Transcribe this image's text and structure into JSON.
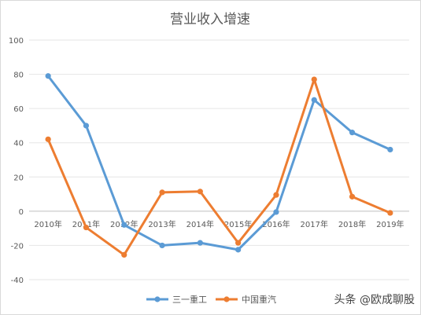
{
  "chart_data": {
    "type": "line",
    "title": "营业收入增速",
    "categories": [
      "2010年",
      "2011年",
      "2012年",
      "2013年",
      "2014年",
      "2015年",
      "2016年",
      "2017年",
      "2018年",
      "2019年"
    ],
    "ylim": [
      -40,
      100
    ],
    "yticks": [
      -40,
      -20,
      0,
      20,
      40,
      60,
      80,
      100
    ],
    "series": [
      {
        "name": "三一重工",
        "color": "#5b9bd5",
        "values": [
          79,
          50,
          -8,
          -20,
          -18.5,
          -22.5,
          -0.5,
          65,
          46,
          36
        ]
      },
      {
        "name": "中国重汽",
        "color": "#ed7d31",
        "values": [
          42,
          -9.5,
          -25.5,
          11,
          11.5,
          -18.5,
          9.5,
          77,
          8.5,
          -1
        ]
      }
    ],
    "grid": true,
    "legend": "bottom"
  },
  "watermark": "头条 @欧成聊股"
}
